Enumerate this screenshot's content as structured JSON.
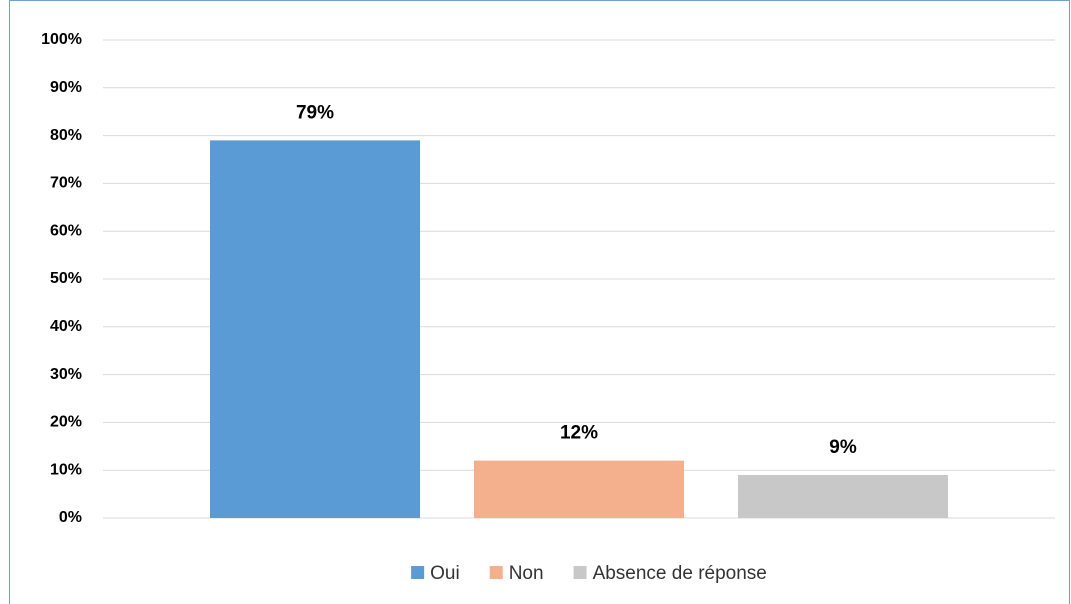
{
  "chart_data": {
    "type": "bar",
    "categories": [
      null
    ],
    "series": [
      {
        "name": "Oui",
        "color": "#5b9bd5",
        "values": [
          79
        ],
        "value_labels": [
          "79%"
        ]
      },
      {
        "name": "Non",
        "color": "#f4b08c",
        "values": [
          12
        ],
        "value_labels": [
          "12%"
        ]
      },
      {
        "name": "Absence de réponse",
        "color": "#c8c8c8",
        "values": [
          9
        ],
        "value_labels": [
          "9%"
        ]
      }
    ],
    "ylim": [
      0,
      100
    ],
    "yticks": [
      {
        "value": 0,
        "label": "0%"
      },
      {
        "value": 10,
        "label": "10%"
      },
      {
        "value": 20,
        "label": "20%"
      },
      {
        "value": 30,
        "label": "30%"
      },
      {
        "value": 40,
        "label": "40%"
      },
      {
        "value": 50,
        "label": "50%"
      },
      {
        "value": 60,
        "label": "60%"
      },
      {
        "value": 70,
        "label": "70%"
      },
      {
        "value": 80,
        "label": "80%"
      },
      {
        "value": 90,
        "label": "90%"
      },
      {
        "value": 100,
        "label": "100%"
      }
    ],
    "grid": true,
    "legend": "bottom"
  }
}
